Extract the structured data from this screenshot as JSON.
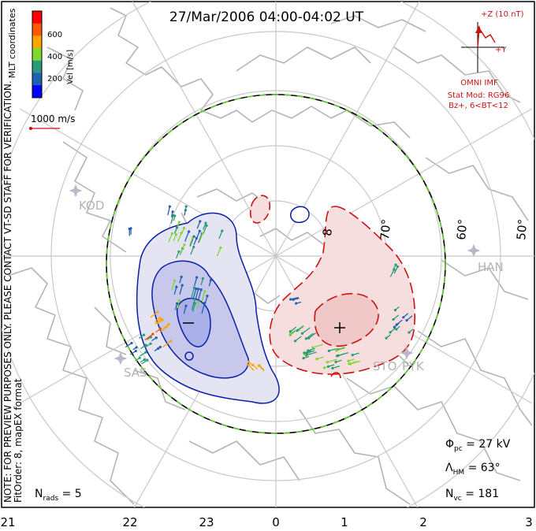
{
  "title": "27/Mar/2006 04:00-04:02 UT",
  "colorbar": {
    "label": "Vel [m/s]",
    "ticks": [
      "600",
      "400",
      "200"
    ],
    "colors": [
      "#ff0000",
      "#ff5a00",
      "#ffa500",
      "#7fd82f",
      "#2a9a7a",
      "#2060b0",
      "#0000ff"
    ]
  },
  "coord_label": "MLT coordinates",
  "vector_scale": "1000 m/s",
  "notes": {
    "preview": "NOTE: FOR PREVIEW PURPOSES ONLY. PLEASE CONTACT VT-SD STAFF FOR VERIFICATION.",
    "fit": "FitOrder: 8, mapEX format"
  },
  "imf": {
    "z_label": "+Z (10 nT)",
    "y_label": "+Y",
    "source": "OMNI IMF",
    "model_line1": "Stat Mod: RG96",
    "model_line2": "Bz+, 6<BT<12"
  },
  "latitude_labels": [
    "70°",
    "60°",
    "50°"
  ],
  "partial_lat_label": "8",
  "stations": [
    "KOD",
    "HAN",
    "SAS",
    "STO",
    "PYK"
  ],
  "mlt_labels": [
    "21",
    "22",
    "23",
    "0",
    "1",
    "2",
    "3"
  ],
  "stats": {
    "phi_sym": "Φ",
    "phi_sub": "pc",
    "phi_val": " = 27 kV",
    "lam_sym": "Λ",
    "lam_sub": "HM",
    "lam_val": " = 63°",
    "nvc_sym": "N",
    "nvc_sub": "vc",
    "nvc_val": " = 181",
    "nrads_sym": "N",
    "nrads_sub": "rads",
    "nrads_val": " = 5"
  },
  "colors": {
    "coast": "#b4b4b4",
    "grid": "#c8c8c8",
    "negative": "#0a1fa8",
    "positive": "#cc1111",
    "imf": "#cc1111",
    "hm_green": "#66cc33"
  }
}
